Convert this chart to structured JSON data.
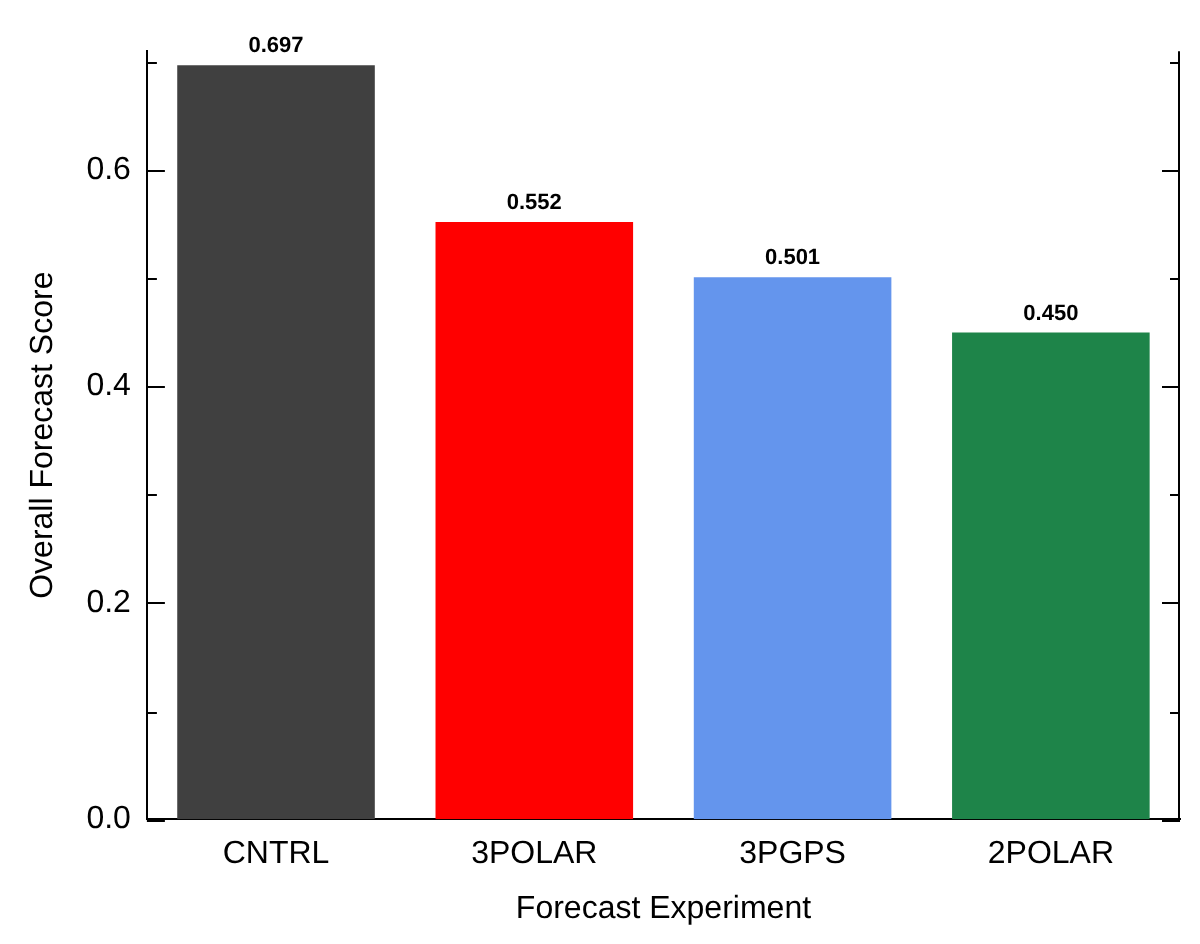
{
  "chart_data": {
    "type": "bar",
    "xlabel": "Forecast Experiment",
    "ylabel": "Overall Forecast Score",
    "categories": [
      "CNTRL",
      "3POLAR",
      "3PGPS",
      "2POLAR"
    ],
    "values": [
      0.697,
      0.552,
      0.501,
      0.45
    ],
    "colors": [
      "#404040",
      "#ff0000",
      "#6495ed",
      "#1e8449"
    ],
    "data_labels": true,
    "value_labels": [
      "0.697",
      "0.552",
      "0.501",
      "0.450"
    ],
    "ylim": [
      0,
      0.71
    ],
    "yticks": [
      {
        "value": 0,
        "label": "0.0"
      },
      {
        "value": 0.1,
        "label": null
      },
      {
        "value": 0.2,
        "label": "0.2"
      },
      {
        "value": 0.3,
        "label": null
      },
      {
        "value": 0.4,
        "label": "0.4"
      },
      {
        "value": 0.5,
        "label": null
      },
      {
        "value": 0.6,
        "label": "0.6"
      },
      {
        "value": 0.7,
        "label": null
      }
    ],
    "grid": false,
    "legend": false
  }
}
